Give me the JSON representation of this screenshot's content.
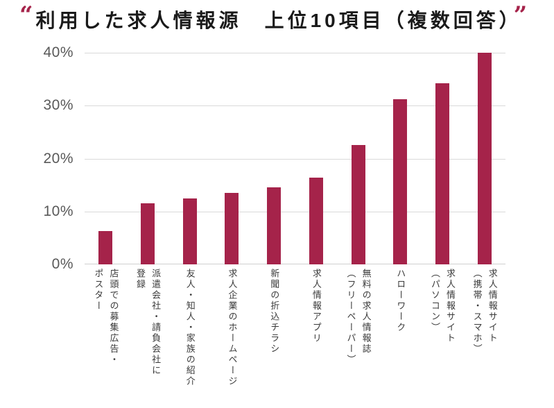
{
  "title": {
    "open_quote": "“",
    "text": "利用した求人情報源　上位10項目（複数回答）",
    "close_quote": "”"
  },
  "colors": {
    "bar": "#A5234A",
    "quote_accent": "#A5234A",
    "gridline": "#D9D9D9",
    "baseline": "#CFCFCF",
    "y_tick_label": "#595959",
    "x_category_label": "#3A3A3A",
    "title_text": "#1A1A1A",
    "background": "#FFFFFF"
  },
  "chart_data": {
    "type": "bar",
    "title": "利用した求人情報源　上位10項目（複数回答）",
    "categories": [
      "店頭での募集広告・ポスター",
      "派遣会社・請負会社に登録",
      "友人・知人・家族の紹介",
      "求人企業のホームページ",
      "新聞の折込チラシ",
      "求人情報アプリ",
      "無料の求人情報誌（フリーペーパー）",
      "ハローワーク",
      "求人情報サイト（パソコン）",
      "求人情報サイト（携帯・スマホ）"
    ],
    "category_display": [
      "店頭での募集広告・\nポスター",
      "派遣会社・請負会社に\n登録",
      "友人・知人・家族の紹介",
      "求人企業のホームページ",
      "新聞の折込チラシ",
      "求人情報アプリ",
      "無料の求人情報誌\n（フリーペーパー）",
      "ハローワーク",
      "求人情報サイト\n（パソコン）",
      "求人情報サイト\n（携帯・スマホ）"
    ],
    "values": [
      6.3,
      11.6,
      12.5,
      13.5,
      14.6,
      16.4,
      22.5,
      31.2,
      34.2,
      40.0
    ],
    "unit": "%",
    "bar_color": "#A5234A",
    "xlabel": "",
    "ylabel": "",
    "y_axis": {
      "min": 0,
      "max": 40,
      "tick_values": [
        0,
        10,
        20,
        30,
        40
      ],
      "tick_labels": [
        "0%",
        "10%",
        "20%",
        "30%",
        "40%"
      ],
      "grid": true
    },
    "legend": false,
    "orientation": "vertical"
  }
}
